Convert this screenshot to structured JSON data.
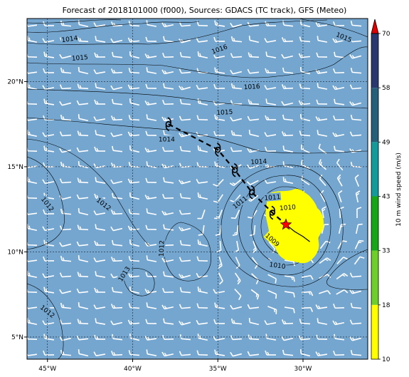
{
  "title": "Forecast of 2018101000 (f000), Sources: GDACS (TC track), GFS (Meteo)",
  "map": {
    "lon_range": [
      -46.2,
      -26.2
    ],
    "lat_range": [
      3.7,
      23.7
    ],
    "ocean_color": "#74a6cf",
    "x_tick_labels": [
      "45°W",
      "40°W",
      "35°W",
      "30°W"
    ],
    "x_ticks": [
      -45,
      -40,
      -35,
      -30
    ],
    "y_tick_labels": [
      "20°N",
      "15°N",
      "10°N",
      "5°N"
    ],
    "y_ticks": [
      20,
      15,
      10,
      5
    ],
    "isobars": {
      "color": "#000000",
      "labels": [
        {
          "text": "1014",
          "lon": -43.7,
          "lat": 22.5,
          "angle": -8
        },
        {
          "text": "1015",
          "lon": -43.1,
          "lat": 21.4,
          "angle": -5
        },
        {
          "text": "1016",
          "lon": -34.9,
          "lat": 21.9,
          "angle": -20
        },
        {
          "text": "1015",
          "lon": -27.6,
          "lat": 22.6,
          "angle": 22
        },
        {
          "text": "1016",
          "lon": -33.0,
          "lat": 19.7,
          "angle": -3
        },
        {
          "text": "1015",
          "lon": -34.6,
          "lat": 18.2,
          "angle": -3
        },
        {
          "text": "1014",
          "lon": -38.0,
          "lat": 16.6,
          "angle": 0
        },
        {
          "text": "1014",
          "lon": -32.6,
          "lat": 15.3,
          "angle": -3
        },
        {
          "text": "1012",
          "lon": -45.0,
          "lat": 12.8,
          "angle": 52
        },
        {
          "text": "1012",
          "lon": -41.7,
          "lat": 12.8,
          "angle": 38
        },
        {
          "text": "1012",
          "lon": -38.3,
          "lat": 10.2,
          "angle": -88
        },
        {
          "text": "1013",
          "lon": -40.5,
          "lat": 8.7,
          "angle": -58
        },
        {
          "text": "1012",
          "lon": -45.0,
          "lat": 6.5,
          "angle": 38
        },
        {
          "text": "1011",
          "lon": -33.7,
          "lat": 12.9,
          "angle": -38
        },
        {
          "text": "1011",
          "lon": -31.8,
          "lat": 13.2,
          "angle": -5
        },
        {
          "text": "1010",
          "lon": -30.9,
          "lat": 12.6,
          "angle": -5
        },
        {
          "text": "1009",
          "lon": -31.8,
          "lat": 10.7,
          "angle": 42
        },
        {
          "text": "1010",
          "lon": -31.5,
          "lat": 9.2,
          "angle": 8
        }
      ]
    },
    "storm": {
      "track_color": "#000000",
      "current_marker_color": "#ff0000",
      "current": {
        "lon": -31.0,
        "lat": 11.6
      },
      "track_points": [
        {
          "lon": -37.9,
          "lat": 17.5
        },
        {
          "lon": -35.0,
          "lat": 16.0
        },
        {
          "lon": -34.0,
          "lat": 14.8
        },
        {
          "lon": -33.0,
          "lat": 13.5
        },
        {
          "lon": -31.8,
          "lat": 12.3
        }
      ],
      "past_track": [
        {
          "lon": -31.0,
          "lat": 11.6
        },
        {
          "lon": -30.5,
          "lat": 11.2
        },
        {
          "lon": -30.0,
          "lat": 10.9
        },
        {
          "lon": -29.6,
          "lat": 10.6
        }
      ],
      "wind_area_color": "#ffff00"
    }
  },
  "colorbar": {
    "label": "10 m wind speed (m/s)",
    "ticks": [
      "10",
      "18",
      "33",
      "43",
      "49",
      "58",
      "70"
    ],
    "colors": [
      "#ffff00",
      "#6ecf2a",
      "#16a616",
      "#139a9a",
      "#24607a",
      "#28386e"
    ],
    "extend_color": "#e00000"
  }
}
